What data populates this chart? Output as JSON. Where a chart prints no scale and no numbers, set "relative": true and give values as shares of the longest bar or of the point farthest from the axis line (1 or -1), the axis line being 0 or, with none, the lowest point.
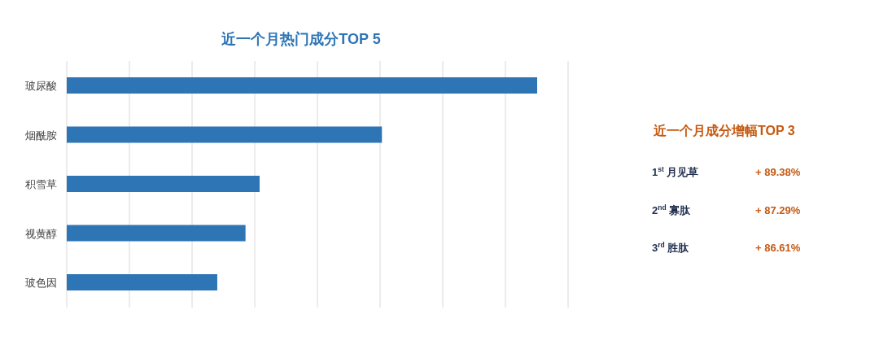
{
  "chart_data": [
    {
      "type": "bar",
      "title": "近一个月热门成分TOP 5",
      "orientation": "horizontal",
      "relative": true,
      "categories": [
        "玻尿酸",
        "烟酰胺",
        "积雪草",
        "视黄醇",
        "玻色因"
      ],
      "values": [
        1,
        0.67,
        0.41,
        0.38,
        0.32
      ],
      "color": "#2e75b6",
      "grid": "x"
    },
    {
      "type": "other",
      "title": "近一个月成分增幅TOP 3",
      "categories": [
        "1$^{st}$ 月见草",
        "2$^{nd}$ 寡肽",
        "3$^{rd}$ 胜肽"
      ],
      "values": [
        89.38,
        87.29,
        86.61
      ],
      "value_labels": [
        "+ 89.38%",
        "+ 87.29%",
        "+ 86.61%"
      ]
    }
  ]
}
